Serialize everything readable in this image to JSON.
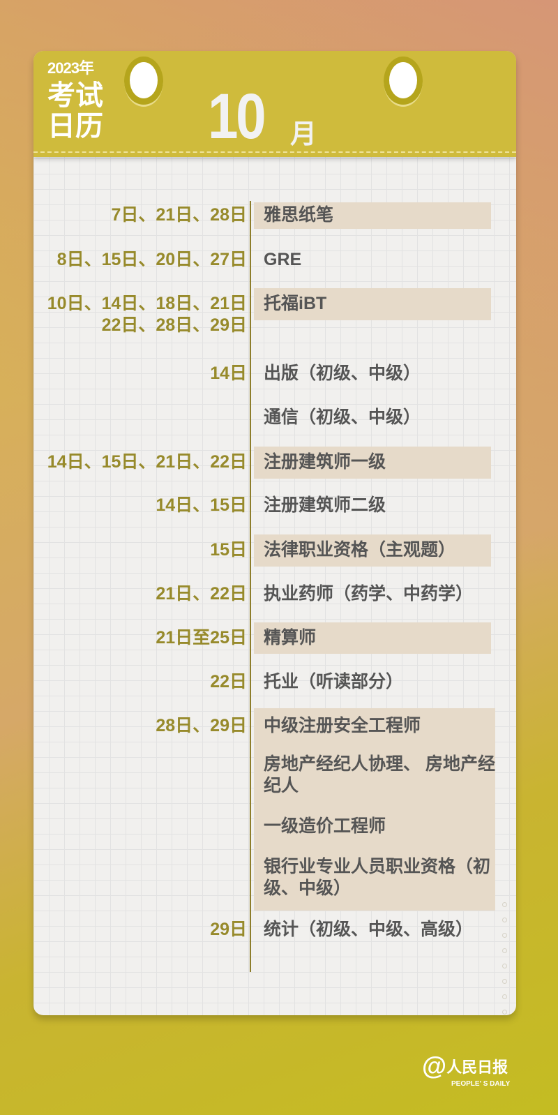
{
  "header": {
    "year": "2023年",
    "title": "考试日历",
    "month_number": "10",
    "month_unit": "月"
  },
  "rows": [
    {
      "dates": "7日、21日、28日",
      "exam": "雅思纸笔",
      "highlight": true
    },
    {
      "dates": "8日、15日、20日、27日",
      "exam": "GRE",
      "highlight": false
    },
    {
      "dates": "10日、14日、18日、21日\n22日、28日、29日",
      "exam": "托福iBT",
      "highlight": true
    },
    {
      "dates": "14日",
      "exam": "出版（初级、中级）",
      "highlight": false
    },
    {
      "dates": "",
      "exam": "通信（初级、中级）",
      "highlight": false
    },
    {
      "dates": "14日、15日、21日、22日",
      "exam": "注册建筑师一级",
      "highlight": true
    },
    {
      "dates": "14日、15日",
      "exam": "注册建筑师二级",
      "highlight": false
    },
    {
      "dates": "15日",
      "exam": "法律职业资格（主观题）",
      "highlight": true
    },
    {
      "dates": "21日、22日",
      "exam": "执业药师（药学、中药学）",
      "highlight": false
    },
    {
      "dates": "21日至25日",
      "exam": "精算师",
      "highlight": true
    },
    {
      "dates": "22日",
      "exam": "托业（听读部分）",
      "highlight": false
    },
    {
      "dates": "28日、29日",
      "exam": "中级注册安全工程师",
      "highlight": true
    },
    {
      "dates": "",
      "exam": "房地产经纪人协理、 房地产经纪人",
      "highlight": true
    },
    {
      "dates": "",
      "exam": "一级造价工程师",
      "highlight": true
    },
    {
      "dates": "",
      "exam": "银行业专业人员职业资格（初级、中级）",
      "highlight": true
    },
    {
      "dates": "29日",
      "exam": "统计（初级、中级、高级）",
      "highlight": false
    }
  ],
  "logo": {
    "name": "人民日报",
    "sub": "PEOPLE' S DAILY"
  },
  "colors": {
    "header": "#cfbb3c",
    "date_text": "#978a2b",
    "highlight": "#e6dac9"
  }
}
